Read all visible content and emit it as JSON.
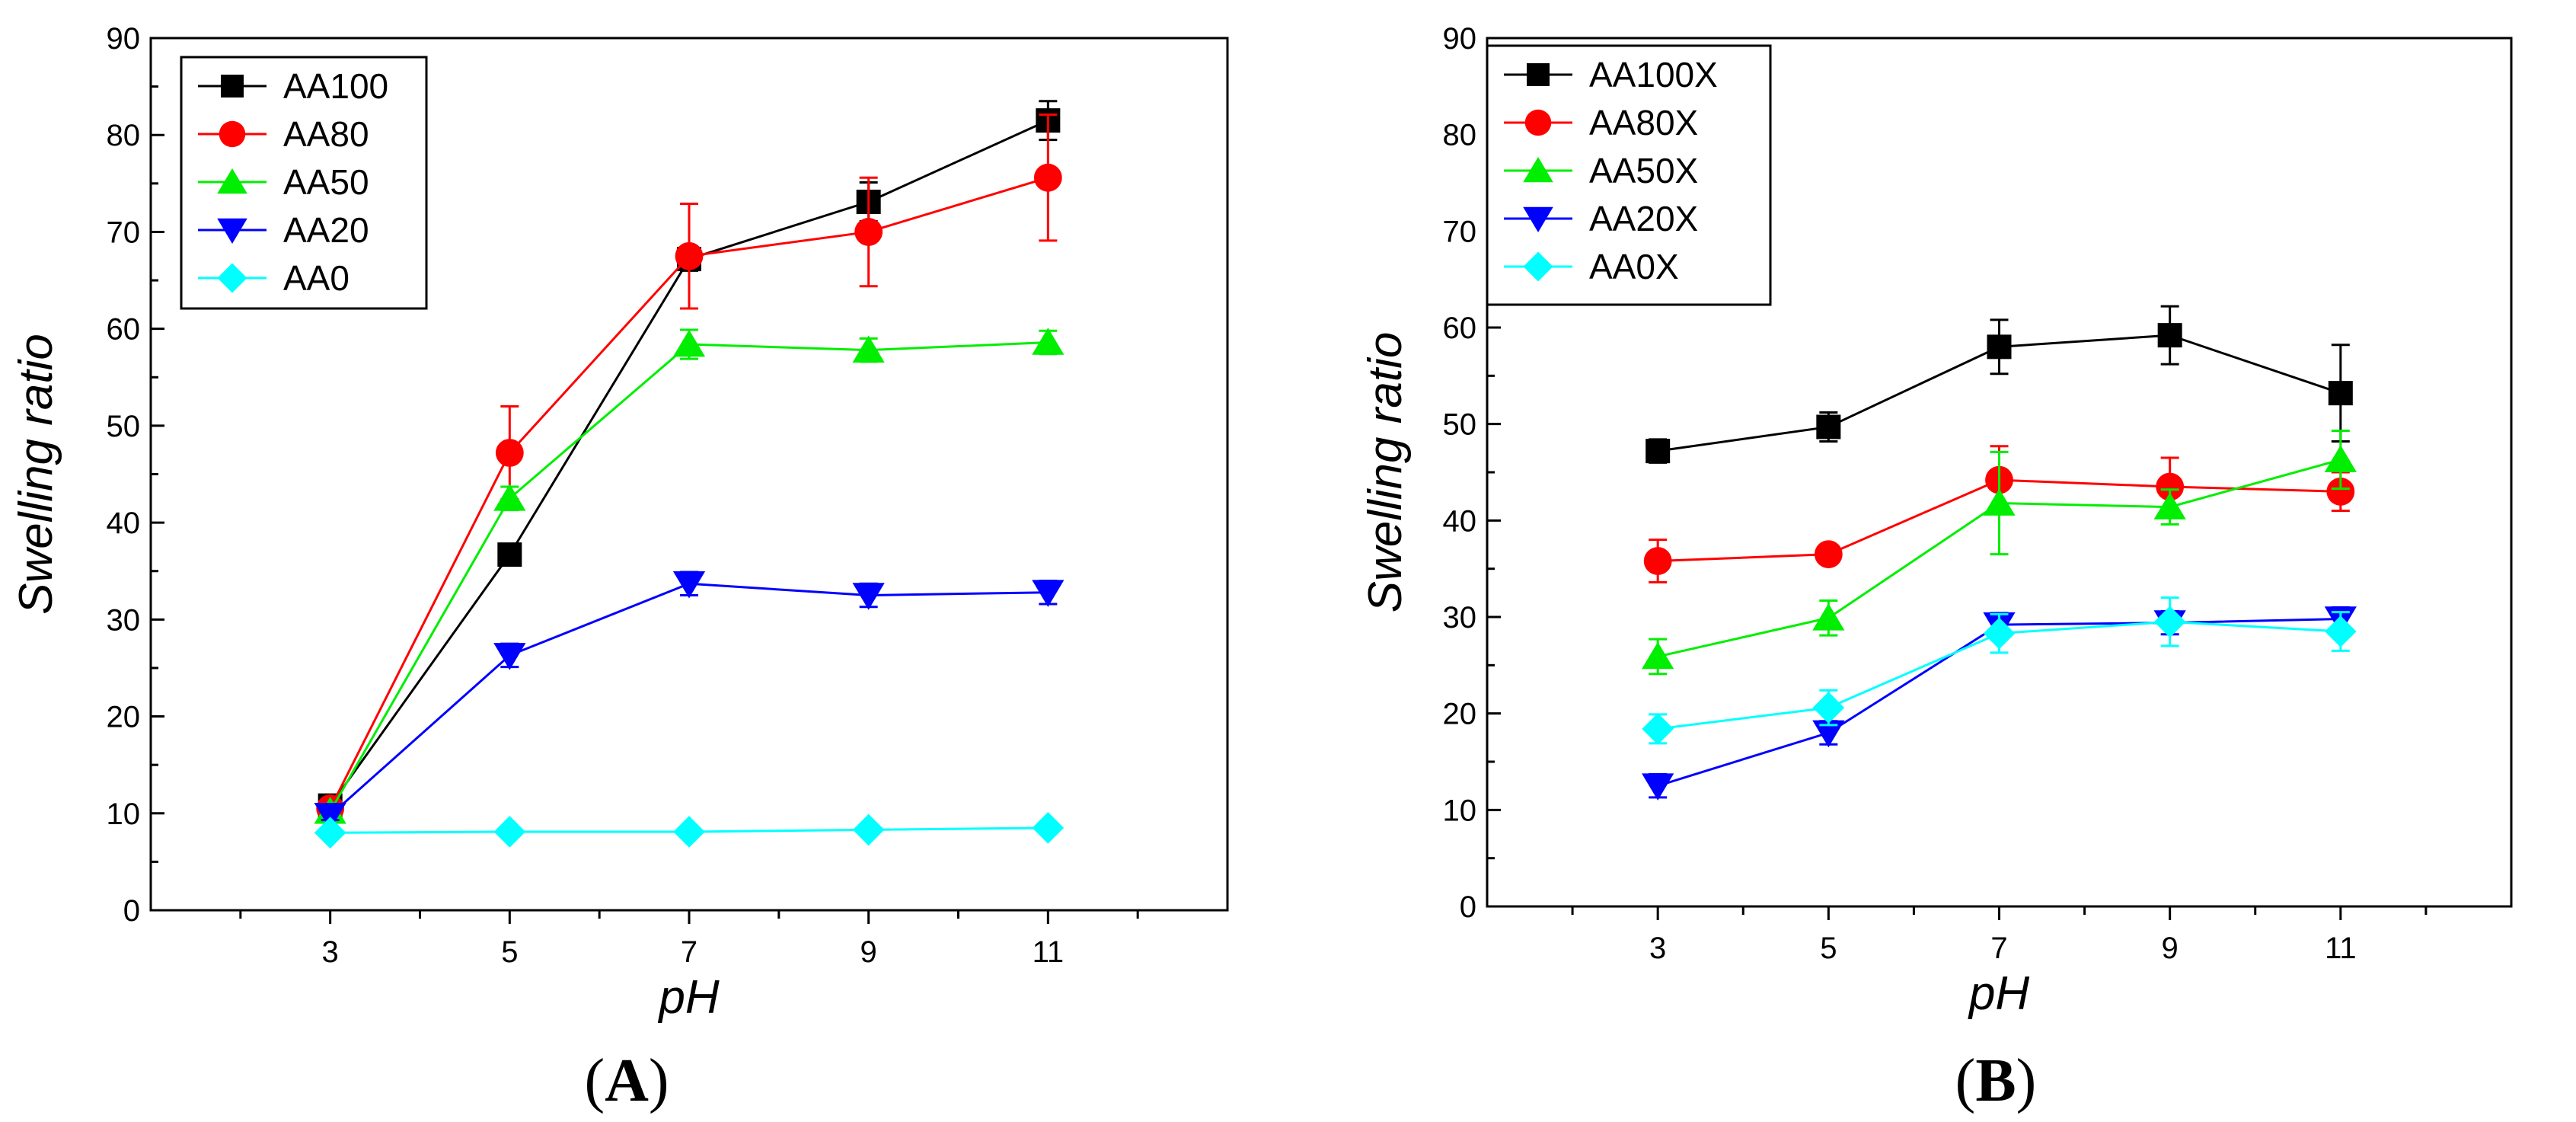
{
  "chart_data": [
    {
      "type": "line",
      "panel_label": "A",
      "panel_label_open": "(",
      "panel_label_close": ")",
      "xlabel": "pH",
      "ylabel": "Swelling ratio",
      "x": [
        3,
        5,
        7,
        9,
        11
      ],
      "xlim": [
        1,
        13
      ],
      "ylim": [
        0,
        90
      ],
      "xticks": [
        3,
        5,
        7,
        9,
        11
      ],
      "yticks": [
        0,
        10,
        20,
        30,
        40,
        50,
        60,
        70,
        80,
        90
      ],
      "legend_position": "top-left",
      "series": [
        {
          "name": "AA100",
          "color": "#000000",
          "marker": "square",
          "values": [
            10.8,
            36.7,
            67.2,
            73.1,
            81.5
          ],
          "errors": [
            0.8,
            1.0,
            1.2,
            2.0,
            2.0
          ]
        },
        {
          "name": "AA80",
          "color": "#ff0000",
          "marker": "circle",
          "values": [
            10.5,
            47.2,
            67.5,
            70.0,
            75.6
          ],
          "errors": [
            1.0,
            4.8,
            5.4,
            5.6,
            6.5
          ]
        },
        {
          "name": "AA50",
          "color": "#00ee00",
          "marker": "triangle-up",
          "values": [
            10.2,
            42.5,
            58.4,
            57.8,
            58.6
          ],
          "errors": [
            0.6,
            1.2,
            1.5,
            1.2,
            1.2
          ]
        },
        {
          "name": "AA20",
          "color": "#0000ff",
          "marker": "triangle-down",
          "values": [
            9.8,
            26.3,
            33.7,
            32.5,
            32.8
          ],
          "errors": [
            0.5,
            1.2,
            1.2,
            1.2,
            1.2
          ]
        },
        {
          "name": "AA0",
          "color": "#00ffff",
          "marker": "diamond",
          "values": [
            8.0,
            8.1,
            8.1,
            8.3,
            8.5
          ],
          "errors": [
            0.3,
            0.3,
            0.3,
            0.3,
            0.3
          ]
        }
      ]
    },
    {
      "type": "line",
      "panel_label": "B",
      "panel_label_open": "(",
      "panel_label_close": ")",
      "xlabel": "pH",
      "ylabel": "Swelling ratio",
      "x": [
        3,
        5,
        7,
        9,
        11
      ],
      "xlim": [
        1,
        13
      ],
      "ylim": [
        0,
        90
      ],
      "xticks": [
        3,
        5,
        7,
        9,
        11
      ],
      "yticks": [
        0,
        10,
        20,
        30,
        40,
        50,
        60,
        70,
        80,
        90
      ],
      "legend_position": "top-left",
      "series": [
        {
          "name": "AA100X",
          "color": "#000000",
          "marker": "square",
          "values": [
            47.2,
            49.7,
            58.0,
            59.2,
            53.2
          ],
          "errors": [
            1.2,
            1.5,
            2.8,
            3.0,
            5.0
          ]
        },
        {
          "name": "AA80X",
          "color": "#ff0000",
          "marker": "circle",
          "values": [
            35.8,
            36.5,
            44.2,
            43.5,
            43.0
          ],
          "errors": [
            2.2,
            0.8,
            3.5,
            3.0,
            2.0
          ]
        },
        {
          "name": "AA50X",
          "color": "#00ee00",
          "marker": "triangle-up",
          "values": [
            25.9,
            29.9,
            41.8,
            41.4,
            46.3
          ],
          "errors": [
            1.8,
            1.8,
            5.3,
            1.8,
            3.0
          ]
        },
        {
          "name": "AA20X",
          "color": "#0000ff",
          "marker": "triangle-down",
          "values": [
            12.5,
            18.0,
            29.2,
            29.4,
            29.8
          ],
          "errors": [
            1.2,
            1.2,
            1.2,
            1.2,
            1.2
          ]
        },
        {
          "name": "AA0X",
          "color": "#00ffff",
          "marker": "diamond",
          "values": [
            18.4,
            20.6,
            28.3,
            29.5,
            28.5
          ],
          "errors": [
            1.5,
            1.8,
            2.0,
            2.5,
            2.0
          ]
        }
      ]
    }
  ]
}
